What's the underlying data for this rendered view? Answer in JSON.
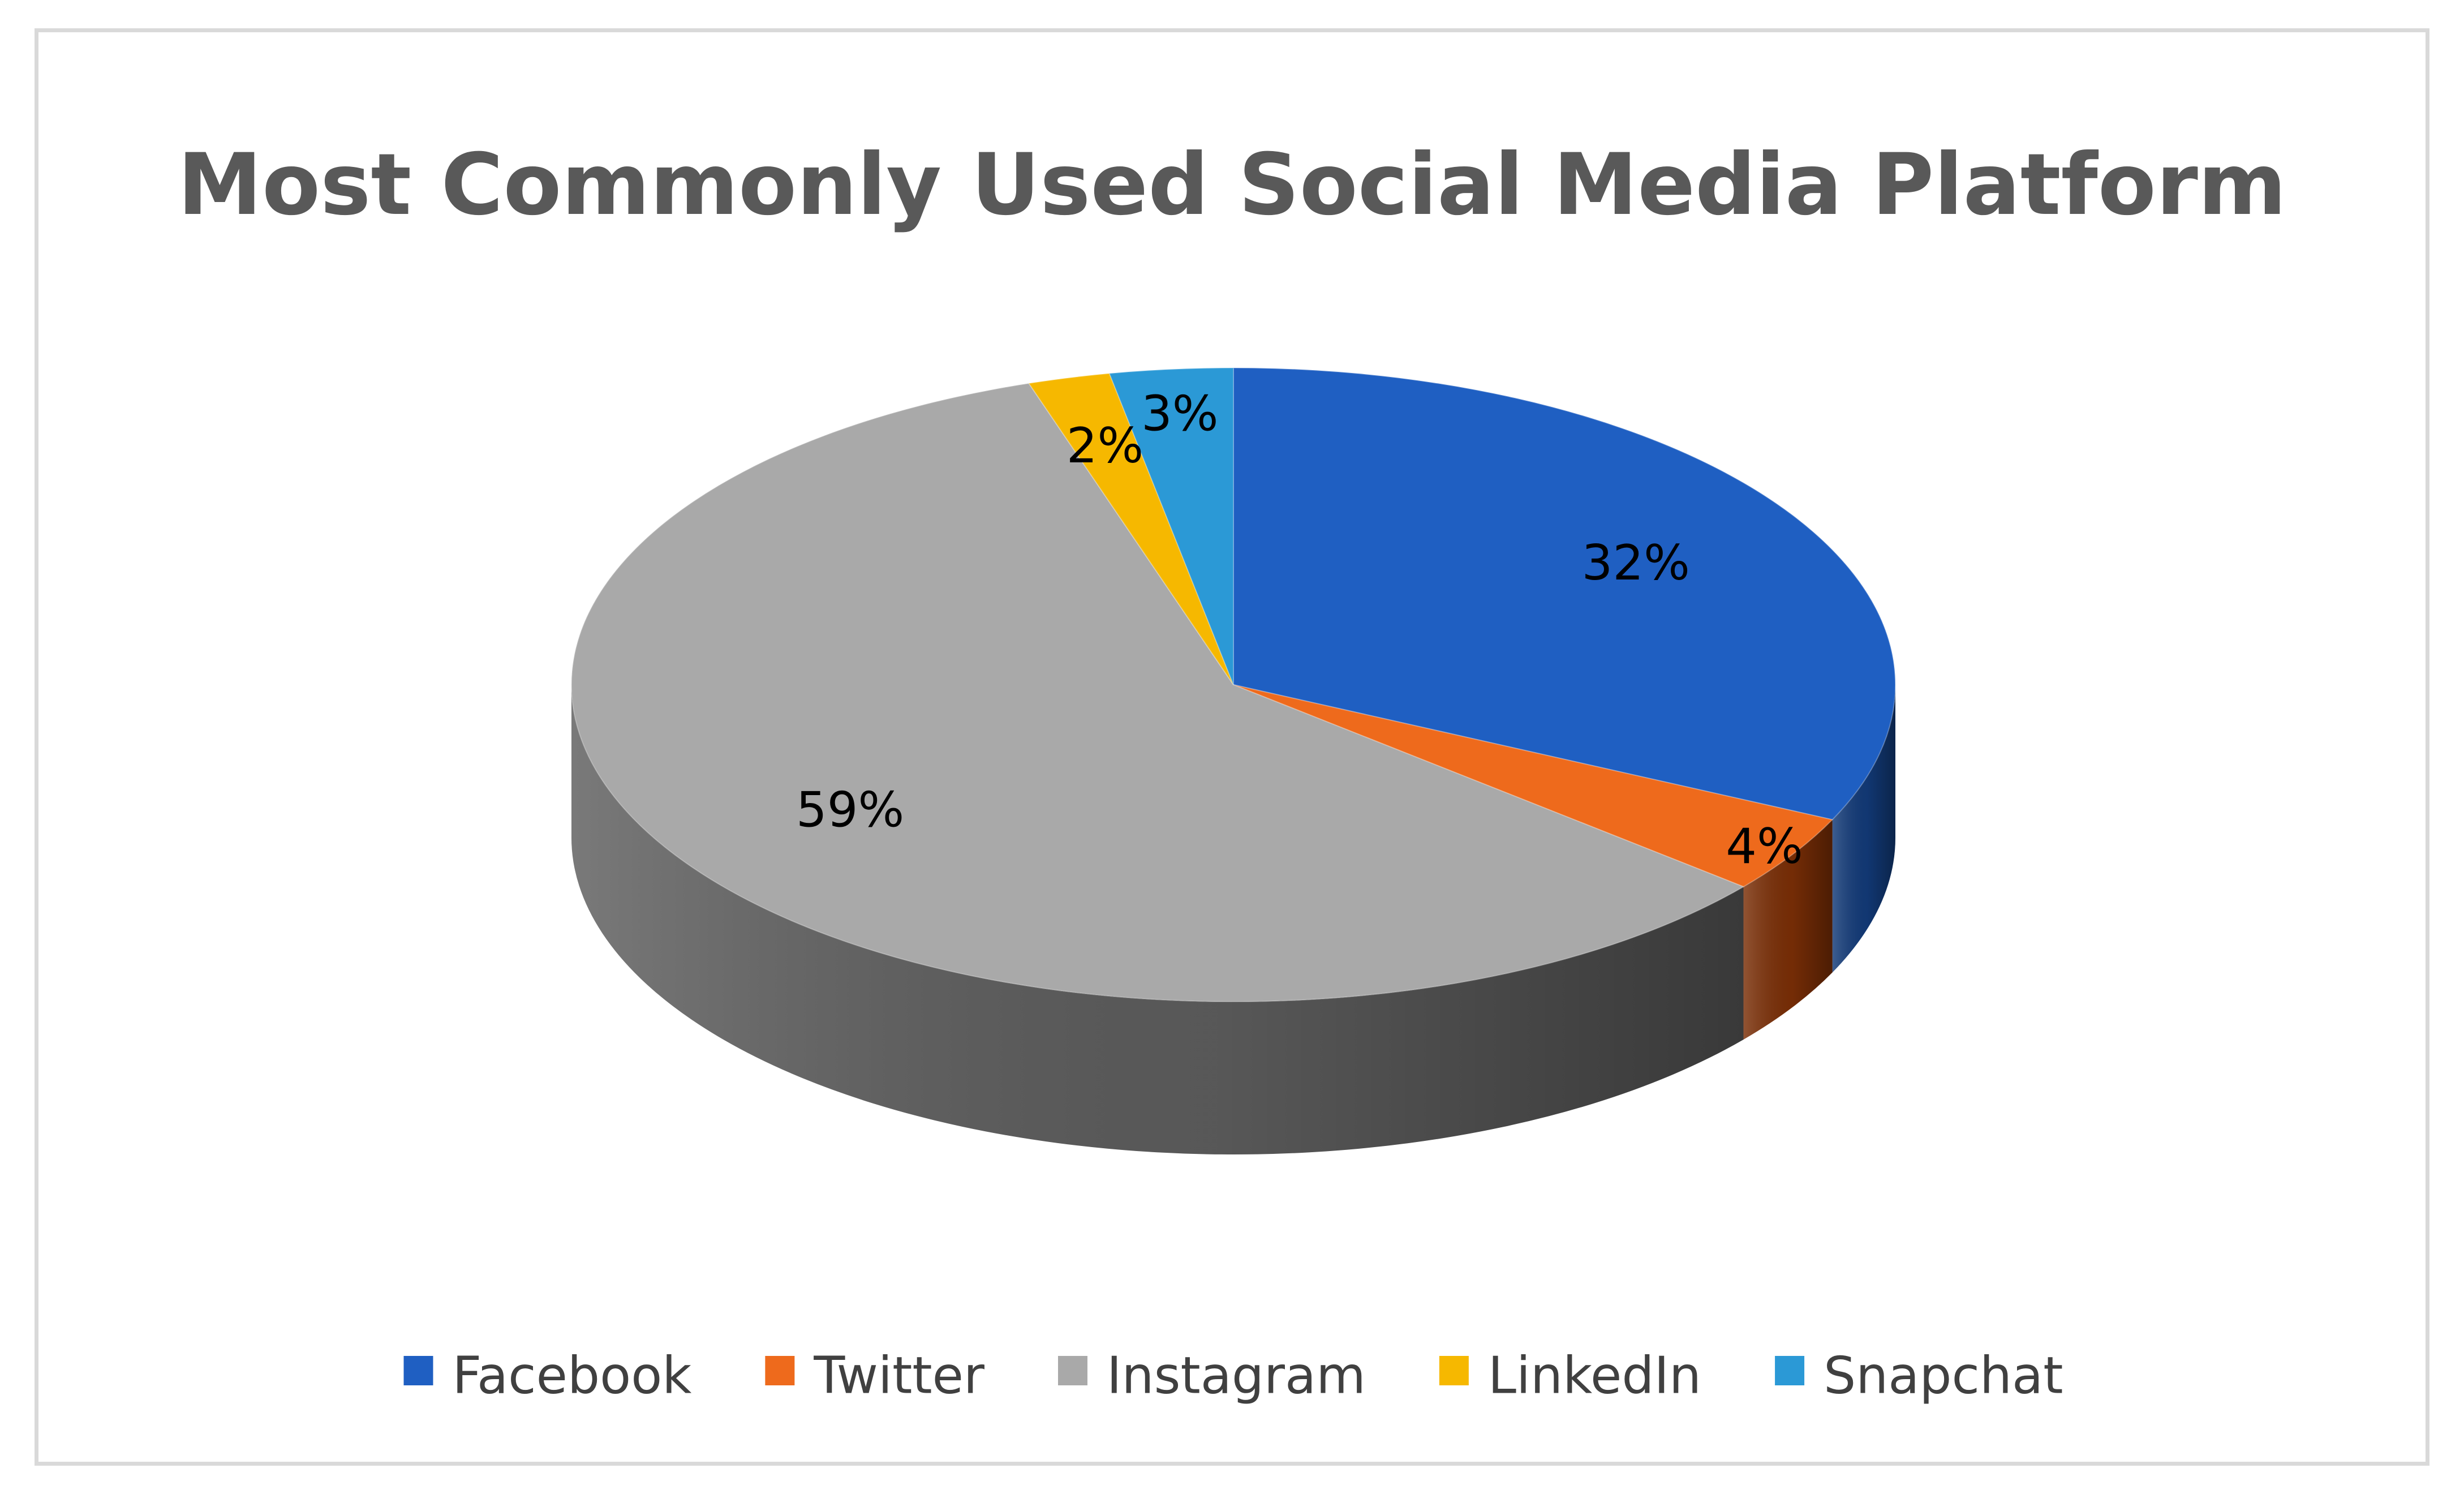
{
  "chart_data": {
    "type": "pie",
    "title": "Most Commonly Used Social Media Platform",
    "categories": [
      "Facebook",
      "Twitter",
      "Instagram",
      "LinkedIn",
      "Snapchat"
    ],
    "values": [
      32,
      4,
      59,
      2,
      3
    ],
    "data_labels": [
      "32%",
      "4%",
      "59%",
      "2%",
      "3%"
    ],
    "colors": [
      "#1f5fc2",
      "#ee6a1c",
      "#a9a9a9",
      "#f6b800",
      "#2b99d6"
    ],
    "side_colors": [
      "#123a78",
      "#7a2e06",
      "#5c5c5c",
      "#8a6700",
      "#185a80"
    ],
    "legend_position": "bottom",
    "style": "3d"
  }
}
